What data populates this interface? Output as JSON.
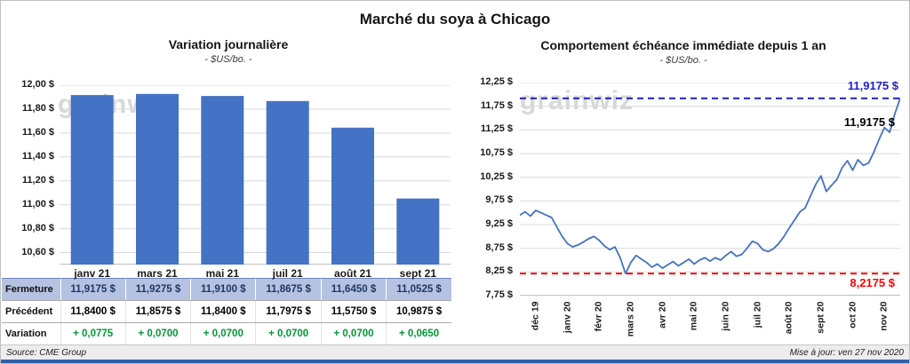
{
  "title": "Marché du soya à Chicago",
  "watermark": "grainwiz",
  "chart_data": [
    {
      "type": "bar",
      "title": "Variation journalière",
      "subtitle": "- $US/bo. -",
      "categories": [
        "janv 21",
        "mars 21",
        "mai 21",
        "juil 21",
        "août 21",
        "sept 21"
      ],
      "values": [
        11.9175,
        11.9275,
        11.91,
        11.8675,
        11.645,
        11.0525
      ],
      "bar_color": "#4472C4",
      "ylim": [
        10.5,
        12.0
      ],
      "y_ticks": [
        12.0,
        11.8,
        11.6,
        11.4,
        11.2,
        11.0,
        10.8,
        10.6
      ],
      "y_tick_labels": [
        "12,00 $",
        "11,80 $",
        "11,60 $",
        "11,40 $",
        "11,20 $",
        "11,00 $",
        "10,80 $",
        "10,60 $"
      ],
      "grid": true,
      "legend": false
    },
    {
      "type": "line",
      "title": "Comportement échéance immédiate depuis 1 an",
      "subtitle": "- $US/bo. -",
      "line_color": "#4472C4",
      "ylim": [
        7.75,
        12.25
      ],
      "y_ticks": [
        12.25,
        11.75,
        11.25,
        10.75,
        10.25,
        9.75,
        9.25,
        8.75,
        8.25,
        7.75
      ],
      "y_tick_labels": [
        "12,25 $",
        "11,75 $",
        "11,25 $",
        "10,75 $",
        "10,25 $",
        "9,75 $",
        "9,25 $",
        "8,75 $",
        "8,25 $",
        "7,75 $"
      ],
      "x_tick_labels": [
        "déc 19",
        "janv 20",
        "févr 20",
        "mars 20",
        "avr 20",
        "mai 20",
        "juin 20",
        "juil 20",
        "août 20",
        "sept 20",
        "oct 20",
        "nov 20"
      ],
      "series": [
        {
          "name": "échéance immédiate",
          "values": [
            9.45,
            9.52,
            9.43,
            9.55,
            9.5,
            9.45,
            9.4,
            9.2,
            9.0,
            8.85,
            8.78,
            8.82,
            8.88,
            8.95,
            9.0,
            8.92,
            8.8,
            8.72,
            8.78,
            8.55,
            8.2175,
            8.45,
            8.6,
            8.52,
            8.45,
            8.35,
            8.42,
            8.33,
            8.4,
            8.47,
            8.38,
            8.45,
            8.52,
            8.42,
            8.5,
            8.55,
            8.48,
            8.55,
            8.5,
            8.6,
            8.68,
            8.58,
            8.62,
            8.75,
            8.9,
            8.85,
            8.72,
            8.68,
            8.74,
            8.85,
            9.0,
            9.18,
            9.35,
            9.52,
            9.6,
            9.85,
            10.1,
            10.28,
            9.95,
            10.08,
            10.2,
            10.45,
            10.6,
            10.4,
            10.62,
            10.5,
            10.55,
            10.78,
            11.05,
            11.3,
            11.2,
            11.6,
            11.9175
          ]
        }
      ],
      "reference_lines": [
        {
          "value": 11.9175,
          "label": "11,9175 $",
          "color": "#1F1FC8",
          "style": "dashed"
        },
        {
          "value": 8.2175,
          "label": "8,2175 $",
          "color": "#FF0000",
          "style": "dashed"
        }
      ],
      "annotations": [
        {
          "text": "11,9175 $",
          "color": "#000000"
        }
      ],
      "grid": true,
      "legend": false
    }
  ],
  "table": {
    "rows": [
      {
        "label": "Fermeture",
        "style": "highlight",
        "values": [
          "11,9175 $",
          "11,9275 $",
          "11,9100 $",
          "11,8675 $",
          "11,6450 $",
          "11,0525 $"
        ]
      },
      {
        "label": "Précédent",
        "style": "plain",
        "values": [
          "11,8400 $",
          "11,8575 $",
          "11,8400 $",
          "11,7975 $",
          "11,5750 $",
          "10,9875 $"
        ]
      },
      {
        "label": "Variation",
        "style": "green",
        "values": [
          "+ 0,0775",
          "+ 0,0700",
          "+ 0,0700",
          "+ 0,0700",
          "+ 0,0700",
          "+ 0,0650"
        ]
      }
    ],
    "highlight_bg": "#B5C2E1",
    "highlight_text": "#1F3864",
    "variation_color": "#009934"
  },
  "footer": {
    "source": "Source: CME Group",
    "updated": "Mise à jour: ven 27 nov 2020"
  }
}
